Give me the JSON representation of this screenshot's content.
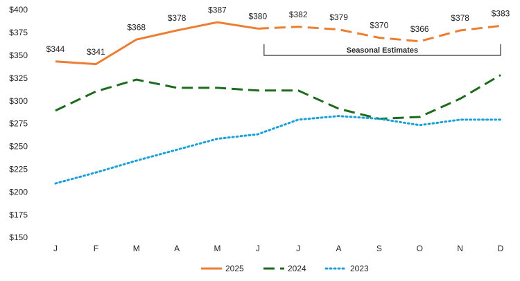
{
  "chart_data": {
    "type": "line",
    "categories": [
      "J",
      "F",
      "M",
      "A",
      "M",
      "J",
      "J",
      "A",
      "S",
      "O",
      "N",
      "D"
    ],
    "series": [
      {
        "name": "2025",
        "color": "#ed7d31",
        "style": "solid",
        "values": [
          344,
          341,
          368,
          378,
          387,
          380,
          382,
          379,
          370,
          366,
          378,
          383
        ],
        "value_labels": [
          "$344",
          "$341",
          "$368",
          "$378",
          "$387",
          "$380",
          "$382",
          "$379",
          "$370",
          "$366",
          "$378",
          "$383"
        ]
      },
      {
        "name": "2024",
        "color": "#1e6b1e",
        "style": "dashed",
        "values": [
          290,
          311,
          324,
          315,
          315,
          312,
          312,
          292,
          281,
          283,
          303,
          329
        ]
      },
      {
        "name": "2023",
        "color": "#1aa0d8",
        "style": "dotted",
        "values": [
          210,
          222,
          235,
          247,
          259,
          264,
          280,
          284,
          281,
          274,
          280,
          280
        ]
      }
    ],
    "annotation": {
      "text": "Seasonal Estimates",
      "span": [
        5,
        11
      ]
    },
    "ylim": [
      150,
      400
    ],
    "yticks": [
      {
        "value": 150,
        "label": "$150"
      },
      {
        "value": 175,
        "label": "$175"
      },
      {
        "value": 200,
        "label": "$200"
      },
      {
        "value": 225,
        "label": "$225"
      },
      {
        "value": 250,
        "label": "$250"
      },
      {
        "value": 275,
        "label": "$275"
      },
      {
        "value": 300,
        "label": "$300"
      },
      {
        "value": 325,
        "label": "$325"
      },
      {
        "value": 350,
        "label": "$350"
      },
      {
        "value": 375,
        "label": "$375"
      },
      {
        "value": 400,
        "label": "$400"
      }
    ],
    "grid": false
  }
}
